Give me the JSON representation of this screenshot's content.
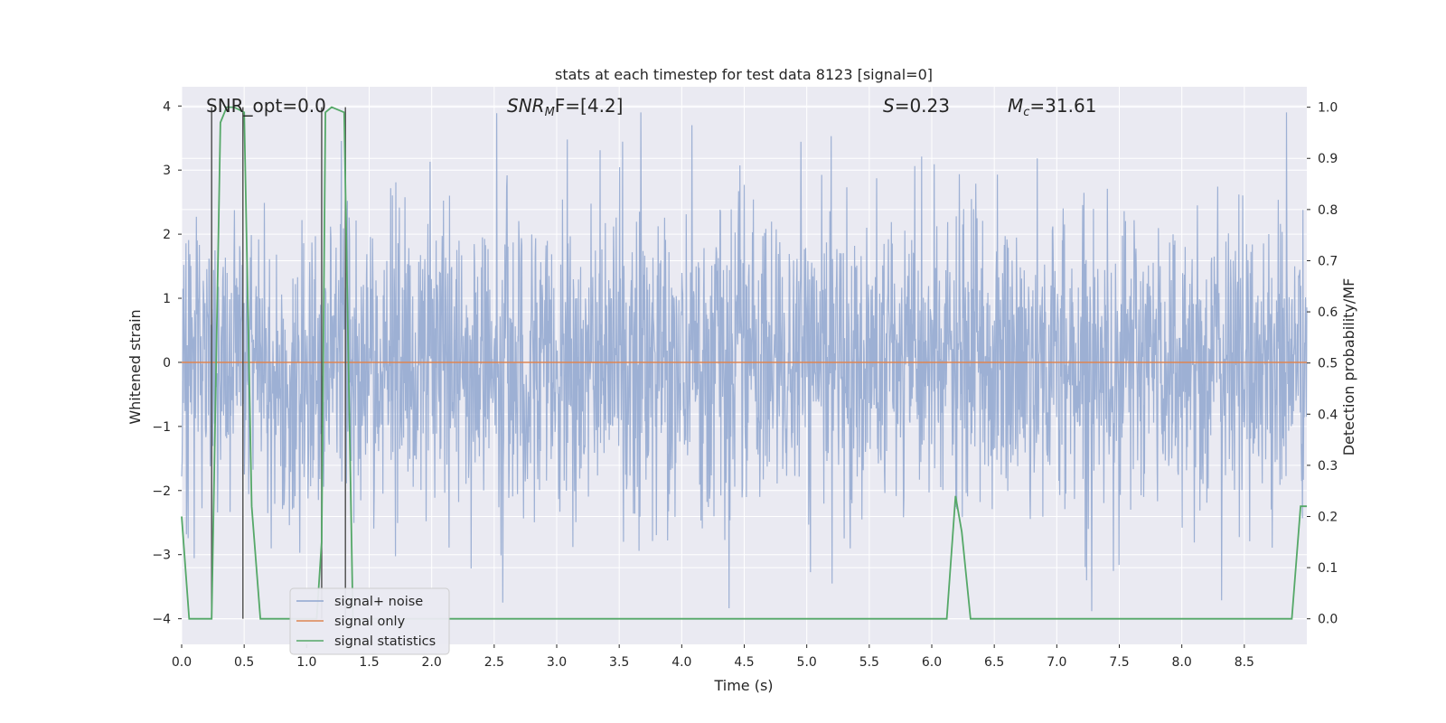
{
  "chart_data": {
    "type": "line",
    "title": "stats at each timestep for test data 8123 [signal=0]",
    "xlabel": "Time (s)",
    "ylabel": "Whitened strain",
    "ylabel_right": "Detection probability/MF",
    "xlim": [
      0.0,
      9.0
    ],
    "ylim": [
      -4.4,
      4.3
    ],
    "ylim_right": [
      -0.05,
      1.04
    ],
    "x_ticks": [
      "0.0",
      "0.5",
      "1.0",
      "1.5",
      "2.0",
      "2.5",
      "3.0",
      "3.5",
      "4.0",
      "4.5",
      "5.0",
      "5.5",
      "6.0",
      "6.5",
      "7.0",
      "7.5",
      "8.0",
      "8.5"
    ],
    "y_ticks": [
      "4",
      "3",
      "2",
      "1",
      "0",
      "−1",
      "−2",
      "−3",
      "−4"
    ],
    "y_ticks_right": [
      "1.0",
      "0.9",
      "0.8",
      "0.7",
      "0.6",
      "0.5",
      "0.4",
      "0.3",
      "0.2",
      "0.1",
      "0.0"
    ],
    "grid": true,
    "legend_position": "lower-left",
    "annotations": {
      "snr_opt": "SNR_opt=0.0",
      "snr_mf_prefix": "SNR",
      "snr_mf_sub": "M",
      "snr_mf_suffix": "F=[4.2]",
      "s_prefix": "S",
      "s_value": "=0.23",
      "mc_prefix": "M",
      "mc_sub": "c",
      "mc_value": "=31.61"
    },
    "series": [
      {
        "name": "signal+ noise",
        "color": "#8fa6cf",
        "description_range": [
          -4.0,
          3.9
        ]
      },
      {
        "name": "signal only",
        "color": "#dd8452",
        "values_constant": 0.0
      },
      {
        "name": "signal statistics",
        "color": "#55a868",
        "axis": "right",
        "x": [
          0.0,
          0.06,
          0.24,
          0.31,
          0.36,
          0.42,
          0.5,
          0.56,
          0.63,
          0.7,
          1.08,
          1.12,
          1.15,
          1.2,
          1.3,
          1.37,
          1.45,
          1.6,
          6.12,
          6.19,
          6.24,
          6.31,
          6.5,
          8.88,
          8.95,
          9.0
        ],
        "values": [
          0.2,
          0.0,
          0.0,
          0.97,
          1.0,
          1.0,
          0.99,
          0.22,
          0.0,
          0.0,
          0.0,
          0.15,
          0.99,
          1.0,
          0.99,
          0.0,
          0.0,
          0.0,
          0.0,
          0.24,
          0.17,
          0.0,
          0.0,
          0.0,
          0.22,
          0.22
        ]
      }
    ],
    "vertical_markers": [
      0.24,
      0.49,
      1.12,
      1.31
    ]
  },
  "colors": {
    "background": "#eaeaf2",
    "grid": "#ffffff",
    "noise": "#8fa6cf",
    "signal": "#dd8452",
    "statistics": "#55a868",
    "marker": "#555555"
  }
}
